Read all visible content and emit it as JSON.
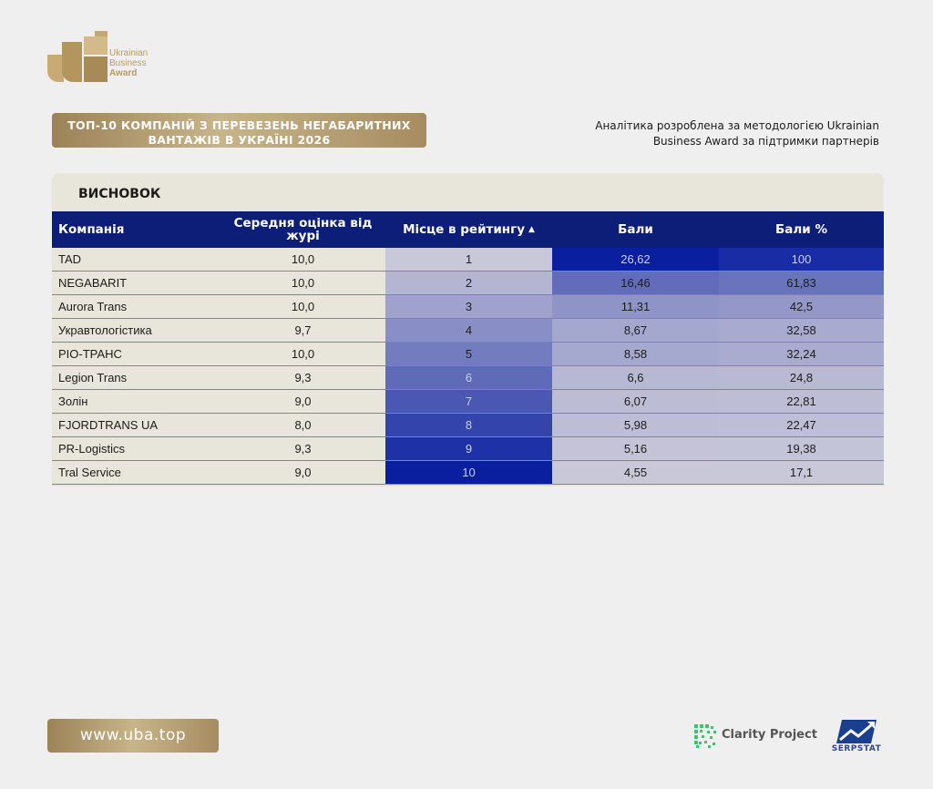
{
  "logo": {
    "line1": "Ukrainian",
    "line2": "Business",
    "line3": "Award"
  },
  "title": "ТОП-10 КОМПАНІЙ З ПЕРЕВЕЗЕНЬ НЕГАБАРИТНИХ ВАНТАЖІВ В УКРАЇНІ 2026",
  "methodology": "Аналітика розроблена за методологією Ukrainian Business Award за підтримки партнерів",
  "section_title": "ВИСНОВОК",
  "table": {
    "headers": {
      "company": "Компанія",
      "jury": "Середня оцінка від журі",
      "place": "Місце в рейтингу",
      "points": "Бали",
      "percent": "Бали %"
    },
    "sort_arrow": "▲",
    "rows": [
      {
        "company": "TAD",
        "jury": "10,0",
        "place": "1",
        "points": "26,62",
        "percent": "100"
      },
      {
        "company": "NEGABARIT",
        "jury": "10,0",
        "place": "2",
        "points": "16,46",
        "percent": "61,83"
      },
      {
        "company": "Aurora Trans",
        "jury": "10,0",
        "place": "3",
        "points": "11,31",
        "percent": "42,5"
      },
      {
        "company": "Укравтологістика",
        "jury": "9,7",
        "place": "4",
        "points": "8,67",
        "percent": "32,58"
      },
      {
        "company": "PIO-ТРАНС",
        "jury": "10,0",
        "place": "5",
        "points": "8,58",
        "percent": "32,24"
      },
      {
        "company": "Legion Trans",
        "jury": "9,3",
        "place": "6",
        "points": "6,6",
        "percent": "24,8"
      },
      {
        "company": "Золін",
        "jury": "9,0",
        "place": "7",
        "points": "6,07",
        "percent": "22,81"
      },
      {
        "company": "FJORDTRANS UA",
        "jury": "8,0",
        "place": "8",
        "points": "5,98",
        "percent": "22,47"
      },
      {
        "company": "PR-Logistics",
        "jury": "9,3",
        "place": "9",
        "points": "5,16",
        "percent": "19,38"
      },
      {
        "company": "Tral Service",
        "jury": "9,0",
        "place": "10",
        "points": "4,55",
        "percent": "17,1"
      }
    ]
  },
  "footer": {
    "url": "www.uba.top",
    "partner1": "Clarity Project",
    "partner2": "SERPSTAT"
  },
  "colors": {
    "header_bg": "#0c1e78",
    "gold": "#b79a66",
    "heat_light": "#c9c8d9",
    "heat_dark": "#0a1ea0"
  }
}
